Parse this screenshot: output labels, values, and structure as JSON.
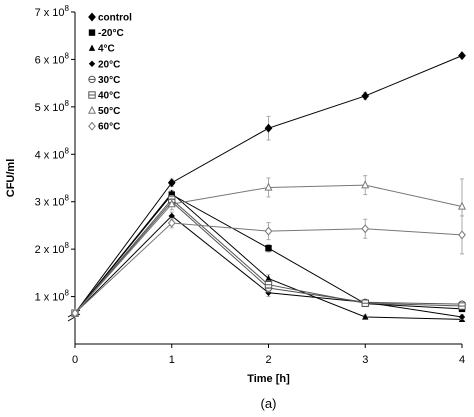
{
  "chart_data": {
    "type": "line",
    "xlabel": "Time [h]",
    "ylabel": "CFU/ml",
    "caption": "(a)",
    "x": [
      0,
      1,
      2,
      3,
      4
    ],
    "xlim": [
      0,
      4
    ],
    "ylim": [
      0,
      700000000
    ],
    "y_axis_break": true,
    "y_ticks": [
      {
        "value": 100000000,
        "mantissa": "1 x 10",
        "exp": "8"
      },
      {
        "value": 200000000,
        "mantissa": "2 x 10",
        "exp": "8"
      },
      {
        "value": 300000000,
        "mantissa": "3 x 10",
        "exp": "8"
      },
      {
        "value": 400000000,
        "mantissa": "4 x 10",
        "exp": "8"
      },
      {
        "value": 500000000,
        "mantissa": "5 x 10",
        "exp": "8"
      },
      {
        "value": 600000000,
        "mantissa": "6 x 10",
        "exp": "8"
      },
      {
        "value": 700000000,
        "mantissa": "7 x 10",
        "exp": "8"
      }
    ],
    "legend_position": "top-left",
    "series": [
      {
        "name": "control",
        "marker": "diamond-filled",
        "color": "#000000",
        "values": [
          65000000,
          340000000,
          455000000,
          523000000,
          608000000
        ],
        "errors": [
          0,
          8000000,
          25000000,
          8000000,
          0
        ]
      },
      {
        "name": "-20°C",
        "marker": "square-filled",
        "color": "#000000",
        "values": [
          65000000,
          315000000,
          202000000,
          85000000,
          74000000
        ],
        "errors": [
          0,
          6000000,
          8000000,
          5000000,
          5000000
        ]
      },
      {
        "name": "4°C",
        "marker": "triangle-filled",
        "color": "#000000",
        "values": [
          65000000,
          318000000,
          138000000,
          57000000,
          52000000
        ],
        "errors": [
          0,
          6000000,
          8000000,
          4000000,
          4000000
        ]
      },
      {
        "name": "20°C",
        "marker": "cross-filled",
        "color": "#000000",
        "values": [
          65000000,
          270000000,
          108000000,
          88000000,
          57000000
        ],
        "errors": [
          0,
          8000000,
          8000000,
          5000000,
          5000000
        ]
      },
      {
        "name": "30°C",
        "marker": "circle-dash-open",
        "color": "#555555",
        "values": [
          65000000,
          300000000,
          118000000,
          88000000,
          84000000
        ],
        "errors": [
          0,
          8000000,
          8000000,
          5000000,
          5000000
        ]
      },
      {
        "name": "40°C",
        "marker": "square-dash-open",
        "color": "#555555",
        "values": [
          65000000,
          305000000,
          125000000,
          86000000,
          80000000
        ],
        "errors": [
          0,
          8000000,
          8000000,
          5000000,
          5000000
        ]
      },
      {
        "name": "50°C",
        "marker": "triangle-open",
        "color": "#777777",
        "values": [
          65000000,
          295000000,
          330000000,
          335000000,
          290000000
        ],
        "errors": [
          0,
          12000000,
          20000000,
          20000000,
          58000000
        ]
      },
      {
        "name": "60°C",
        "marker": "diamond-open",
        "color": "#777777",
        "values": [
          65000000,
          255000000,
          238000000,
          243000000,
          230000000
        ],
        "errors": [
          0,
          10000000,
          18000000,
          20000000,
          40000000
        ]
      }
    ]
  }
}
